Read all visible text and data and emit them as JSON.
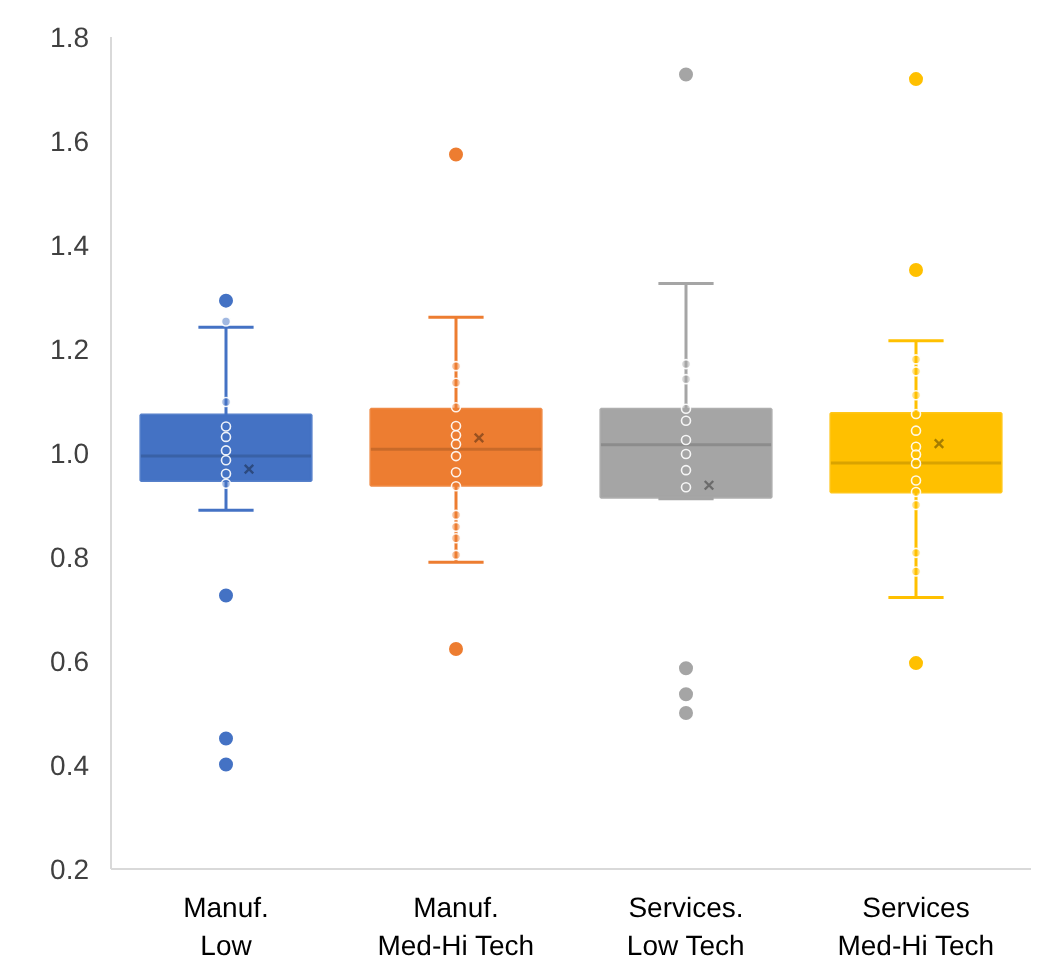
{
  "chart_data": {
    "type": "box",
    "categories": [
      "Manuf.\nLow",
      "Manuf.\nMed-Hi Tech",
      "Services.\nLow Tech",
      "Services\nMed-Hi Tech"
    ],
    "colors": [
      "#4472c4",
      "#ed7d31",
      "#a5a5a5",
      "#ffc000"
    ],
    "boxes": [
      {
        "low": 0.89,
        "q1": 0.947,
        "median": 0.994,
        "q3": 1.073,
        "high": 1.242,
        "mean": 0.969,
        "outliers": [
          1.293,
          0.726,
          0.451,
          0.401
        ]
      },
      {
        "low": 0.79,
        "q1": 0.938,
        "median": 1.007,
        "q3": 1.084,
        "high": 1.261,
        "mean": 1.029,
        "outliers": [
          1.574,
          0.623
        ]
      },
      {
        "low": 0.912,
        "q1": 0.915,
        "median": 1.016,
        "q3": 1.084,
        "high": 1.326,
        "mean": 0.938,
        "outliers": [
          1.728,
          0.586,
          0.536,
          0.5
        ]
      },
      {
        "low": 0.722,
        "q1": 0.925,
        "median": 0.981,
        "q3": 1.076,
        "high": 1.216,
        "mean": 1.018,
        "outliers": [
          1.719,
          1.352,
          0.596
        ]
      }
    ],
    "series": [
      {
        "type": "scatter",
        "color": "#4472c4",
        "x": [
          "Manuf.\nLow",
          "Manuf.\nLow",
          "Manuf.\nLow",
          "Manuf.\nLow",
          "Manuf.\nLow",
          "Manuf.\nLow",
          "Manuf.\nLow",
          "Manuf.\nLow"
        ],
        "values": [
          1.253,
          1.098,
          1.051,
          1.031,
          1.005,
          0.986,
          0.96,
          0.941
        ]
      },
      {
        "type": "scatter",
        "color": "#ed7d31",
        "x": [
          "Manuf.\nMed-Hi Tech",
          "Manuf.\nMed-Hi Tech",
          "Manuf.\nMed-Hi Tech",
          "Manuf.\nMed-Hi Tech",
          "Manuf.\nMed-Hi Tech",
          "Manuf.\nMed-Hi Tech",
          "Manuf.\nMed-Hi Tech",
          "Manuf.\nMed-Hi Tech",
          "Manuf.\nMed-Hi Tech",
          "Manuf.\nMed-Hi Tech",
          "Manuf.\nMed-Hi Tech",
          "Manuf.\nMed-Hi Tech",
          "Manuf.\nMed-Hi Tech"
        ],
        "values": [
          1.167,
          1.135,
          1.088,
          1.052,
          1.034,
          1.017,
          0.994,
          0.963,
          0.936,
          0.881,
          0.858,
          0.836,
          0.804
        ]
      },
      {
        "type": "scatter",
        "color": "#a5a5a5",
        "x": [
          "Services.\nLow Tech",
          "Services.\nLow Tech",
          "Services.\nLow Tech",
          "Services.\nLow Tech",
          "Services.\nLow Tech",
          "Services.\nLow Tech",
          "Services.\nLow Tech",
          "Services.\nLow Tech"
        ],
        "values": [
          1.171,
          1.142,
          1.085,
          1.062,
          1.025,
          0.998,
          0.967,
          0.934
        ]
      },
      {
        "type": "scatter",
        "color": "#ffc000",
        "x": [
          "Services\nMed-Hi Tech",
          "Services\nMed-Hi Tech",
          "Services\nMed-Hi Tech",
          "Services\nMed-Hi Tech",
          "Services\nMed-Hi Tech",
          "Services\nMed-Hi Tech",
          "Services\nMed-Hi Tech",
          "Services\nMed-Hi Tech",
          "Services\nMed-Hi Tech",
          "Services\nMed-Hi Tech",
          "Services\nMed-Hi Tech",
          "Services\nMed-Hi Tech",
          "Services\nMed-Hi Tech"
        ],
        "values": [
          1.18,
          1.157,
          1.111,
          1.075,
          1.043,
          1.012,
          0.997,
          0.98,
          0.947,
          0.925,
          0.9,
          0.808,
          0.772
        ]
      }
    ],
    "ylim": [
      0.2,
      1.8
    ],
    "yticks": [
      0.2,
      0.4,
      0.6,
      0.8,
      {
        "value": 1,
        "label": "1.0"
      },
      1.2,
      1.4,
      1.6,
      1.8
    ],
    "grid": false,
    "marker": "circle"
  }
}
